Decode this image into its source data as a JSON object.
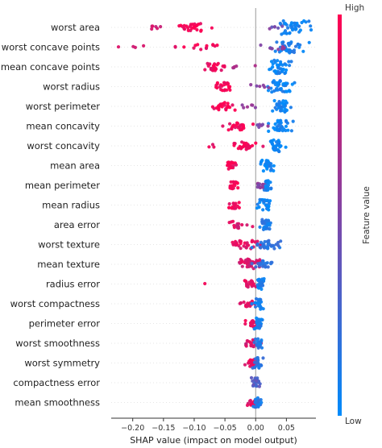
{
  "chart_data": {
    "type": "scatter",
    "subtype": "shap-beeswarm-summary",
    "xlabel": "SHAP value (impact on model output)",
    "xlim": [
      -0.235,
      0.098
    ],
    "xticks": [
      -0.2,
      -0.15,
      -0.1,
      -0.05,
      0.0,
      0.05
    ],
    "xtick_labels": [
      "−0.20",
      "−0.15",
      "−0.10",
      "−0.05",
      "0.00",
      "0.05"
    ],
    "zero_line": true,
    "grid": false,
    "colorbar": {
      "title": "Feature value",
      "high_label": "High",
      "low_label": "Low",
      "high_color": "#ff0051",
      "low_color": "#008bfb"
    },
    "features": [
      {
        "name": "worst area",
        "clusters": [
          {
            "center": -0.105,
            "spread": 0.028,
            "count": 26,
            "color": 0.97,
            "height": 0.55
          },
          {
            "center": -0.165,
            "spread": 0.02,
            "count": 6,
            "color": 0.8,
            "height": 0.3
          },
          {
            "center": 0.062,
            "spread": 0.022,
            "count": 40,
            "color": 0.05,
            "height": 1.0
          },
          {
            "center": 0.03,
            "spread": 0.012,
            "count": 6,
            "color": 0.45,
            "height": 0.3
          }
        ]
      },
      {
        "name": "worst concave points",
        "clusters": [
          {
            "center": -0.09,
            "spread": 0.04,
            "count": 14,
            "color": 0.95,
            "height": 0.45
          },
          {
            "center": -0.2,
            "spread": 0.02,
            "count": 4,
            "color": 0.9,
            "height": 0.2
          },
          {
            "center": 0.055,
            "spread": 0.022,
            "count": 38,
            "color": 0.1,
            "height": 0.9
          },
          {
            "center": 0.035,
            "spread": 0.015,
            "count": 8,
            "color": 0.55,
            "height": 0.4
          }
        ]
      },
      {
        "name": "mean concave points",
        "clusters": [
          {
            "center": -0.065,
            "spread": 0.018,
            "count": 24,
            "color": 0.92,
            "height": 0.55
          },
          {
            "center": -0.02,
            "spread": 0.025,
            "count": 5,
            "color": 0.6,
            "height": 0.2
          },
          {
            "center": 0.04,
            "spread": 0.016,
            "count": 40,
            "color": 0.05,
            "height": 1.0
          }
        ]
      },
      {
        "name": "worst radius",
        "clusters": [
          {
            "center": -0.055,
            "spread": 0.012,
            "count": 24,
            "color": 0.97,
            "height": 0.6
          },
          {
            "center": 0.04,
            "spread": 0.018,
            "count": 40,
            "color": 0.05,
            "height": 0.9
          },
          {
            "center": 0.01,
            "spread": 0.012,
            "count": 6,
            "color": 0.5,
            "height": 0.3
          }
        ]
      },
      {
        "name": "worst perimeter",
        "clusters": [
          {
            "center": -0.055,
            "spread": 0.016,
            "count": 24,
            "color": 0.96,
            "height": 0.6
          },
          {
            "center": -0.005,
            "spread": 0.022,
            "count": 6,
            "color": 0.55,
            "height": 0.25
          },
          {
            "center": 0.04,
            "spread": 0.014,
            "count": 34,
            "color": 0.05,
            "height": 0.85
          }
        ]
      },
      {
        "name": "mean concavity",
        "clusters": [
          {
            "center": -0.03,
            "spread": 0.018,
            "count": 24,
            "color": 0.95,
            "height": 0.6
          },
          {
            "center": 0.04,
            "spread": 0.014,
            "count": 34,
            "color": 0.05,
            "height": 0.85
          },
          {
            "center": 0.005,
            "spread": 0.012,
            "count": 6,
            "color": 0.5,
            "height": 0.25
          }
        ]
      },
      {
        "name": "worst concavity",
        "clusters": [
          {
            "center": -0.02,
            "spread": 0.02,
            "count": 30,
            "color": 0.95,
            "height": 0.6
          },
          {
            "center": -0.07,
            "spread": 0.005,
            "count": 3,
            "color": 0.9,
            "height": 0.2
          },
          {
            "center": 0.032,
            "spread": 0.012,
            "count": 34,
            "color": 0.05,
            "height": 0.85
          }
        ]
      },
      {
        "name": "mean area",
        "clusters": [
          {
            "center": -0.04,
            "spread": 0.008,
            "count": 18,
            "color": 0.96,
            "height": 0.5
          },
          {
            "center": 0.018,
            "spread": 0.008,
            "count": 30,
            "color": 0.05,
            "height": 0.8
          }
        ]
      },
      {
        "name": "mean perimeter",
        "clusters": [
          {
            "center": -0.035,
            "spread": 0.008,
            "count": 18,
            "color": 0.96,
            "height": 0.5
          },
          {
            "center": 0.01,
            "spread": 0.008,
            "count": 16,
            "color": 0.5,
            "height": 0.4
          },
          {
            "center": 0.02,
            "spread": 0.006,
            "count": 20,
            "color": 0.05,
            "height": 0.8
          }
        ]
      },
      {
        "name": "mean radius",
        "clusters": [
          {
            "center": -0.035,
            "spread": 0.01,
            "count": 18,
            "color": 0.96,
            "height": 0.5
          },
          {
            "center": 0.015,
            "spread": 0.01,
            "count": 30,
            "color": 0.05,
            "height": 0.8
          }
        ]
      },
      {
        "name": "area error",
        "clusters": [
          {
            "center": -0.03,
            "spread": 0.022,
            "count": 16,
            "color": 0.85,
            "height": 0.5
          },
          {
            "center": 0.015,
            "spread": 0.008,
            "count": 30,
            "color": 0.1,
            "height": 0.8
          }
        ]
      },
      {
        "name": "worst texture",
        "clusters": [
          {
            "center": -0.02,
            "spread": 0.025,
            "count": 30,
            "color": 0.9,
            "height": 0.6
          },
          {
            "center": 0.02,
            "spread": 0.022,
            "count": 34,
            "color": 0.15,
            "height": 0.6
          }
        ]
      },
      {
        "name": "mean texture",
        "clusters": [
          {
            "center": -0.01,
            "spread": 0.016,
            "count": 34,
            "color": 0.85,
            "height": 0.75
          },
          {
            "center": 0.015,
            "spread": 0.016,
            "count": 20,
            "color": 0.2,
            "height": 0.5
          }
        ]
      },
      {
        "name": "radius error",
        "clusters": [
          {
            "center": -0.01,
            "spread": 0.014,
            "count": 20,
            "color": 0.9,
            "height": 0.5
          },
          {
            "center": -0.08,
            "spread": 0.002,
            "count": 1,
            "color": 0.95,
            "height": 0.1
          },
          {
            "center": 0.008,
            "spread": 0.008,
            "count": 24,
            "color": 0.1,
            "height": 0.8
          }
        ]
      },
      {
        "name": "worst compactness",
        "clusters": [
          {
            "center": -0.01,
            "spread": 0.015,
            "count": 22,
            "color": 0.92,
            "height": 0.5
          },
          {
            "center": 0.005,
            "spread": 0.008,
            "count": 24,
            "color": 0.1,
            "height": 0.8
          }
        ]
      },
      {
        "name": "perimeter error",
        "clusters": [
          {
            "center": -0.005,
            "spread": 0.01,
            "count": 20,
            "color": 0.9,
            "height": 0.5
          },
          {
            "center": 0.005,
            "spread": 0.006,
            "count": 24,
            "color": 0.1,
            "height": 0.8
          }
        ]
      },
      {
        "name": "worst smoothness",
        "clusters": [
          {
            "center": -0.005,
            "spread": 0.012,
            "count": 20,
            "color": 0.85,
            "height": 0.5
          },
          {
            "center": 0.005,
            "spread": 0.006,
            "count": 24,
            "color": 0.15,
            "height": 0.8
          }
        ]
      },
      {
        "name": "worst symmetry",
        "clusters": [
          {
            "center": -0.005,
            "spread": 0.012,
            "count": 20,
            "color": 0.9,
            "height": 0.5
          },
          {
            "center": 0.004,
            "spread": 0.006,
            "count": 22,
            "color": 0.15,
            "height": 0.8
          }
        ]
      },
      {
        "name": "compactness error",
        "clusters": [
          {
            "center": 0.0,
            "spread": 0.006,
            "count": 24,
            "color": 0.3,
            "height": 0.8
          }
        ]
      },
      {
        "name": "mean smoothness",
        "clusters": [
          {
            "center": -0.005,
            "spread": 0.01,
            "count": 18,
            "color": 0.9,
            "height": 0.5
          },
          {
            "center": 0.004,
            "spread": 0.006,
            "count": 20,
            "color": 0.15,
            "height": 0.8
          }
        ]
      }
    ]
  }
}
